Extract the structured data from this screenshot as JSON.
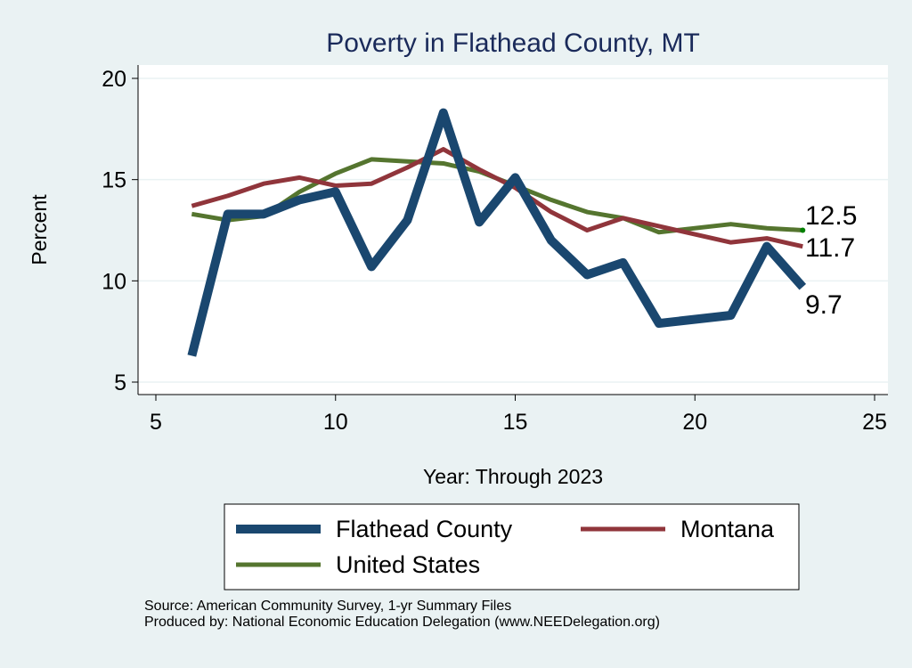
{
  "chart_data": {
    "type": "line",
    "title": "Poverty in Flathead County, MT",
    "xlabel": "Year: Through 2023",
    "ylabel": "Percent",
    "xlim": [
      5,
      25
    ],
    "ylim": [
      5,
      20
    ],
    "xticks": [
      5,
      10,
      15,
      20,
      25
    ],
    "yticks": [
      5,
      10,
      15,
      20
    ],
    "grid": true,
    "legend_position": "bottom",
    "series": [
      {
        "name": "Flathead County",
        "color": "#1a476f",
        "x": [
          6,
          7,
          8,
          9,
          10,
          11,
          12,
          13,
          14,
          15,
          16,
          17,
          18,
          19,
          21,
          22,
          23
        ],
        "y": [
          6.3,
          13.3,
          13.3,
          14.0,
          14.4,
          10.7,
          13.0,
          18.3,
          12.9,
          15.1,
          12.0,
          10.3,
          10.9,
          7.9,
          8.3,
          11.7,
          9.7
        ]
      },
      {
        "name": "Montana",
        "color": "#90353b",
        "x": [
          6,
          7,
          8,
          9,
          10,
          11,
          12,
          13,
          14,
          15,
          16,
          17,
          18,
          19,
          21,
          22,
          23
        ],
        "y": [
          13.7,
          14.2,
          14.8,
          15.1,
          14.7,
          14.8,
          15.6,
          16.5,
          15.5,
          14.6,
          13.4,
          12.5,
          13.1,
          12.7,
          11.9,
          12.1,
          11.7
        ]
      },
      {
        "name": "United States",
        "color": "#55752f",
        "x": [
          6,
          7,
          8,
          9,
          10,
          11,
          12,
          13,
          14,
          15,
          16,
          17,
          18,
          19,
          21,
          22,
          23
        ],
        "y": [
          13.3,
          13.0,
          13.2,
          14.4,
          15.3,
          16.0,
          15.9,
          15.8,
          15.4,
          14.7,
          14.0,
          13.4,
          13.1,
          12.4,
          12.8,
          12.6,
          12.5
        ]
      }
    ],
    "end_labels": [
      "9.7",
      "11.7",
      "12.5"
    ]
  },
  "notes": {
    "source": "Source: American Community Survey, 1-yr Summary Files",
    "produced": "Produced by: National Economic Education Delegation (www.NEEDelegation.org)"
  }
}
